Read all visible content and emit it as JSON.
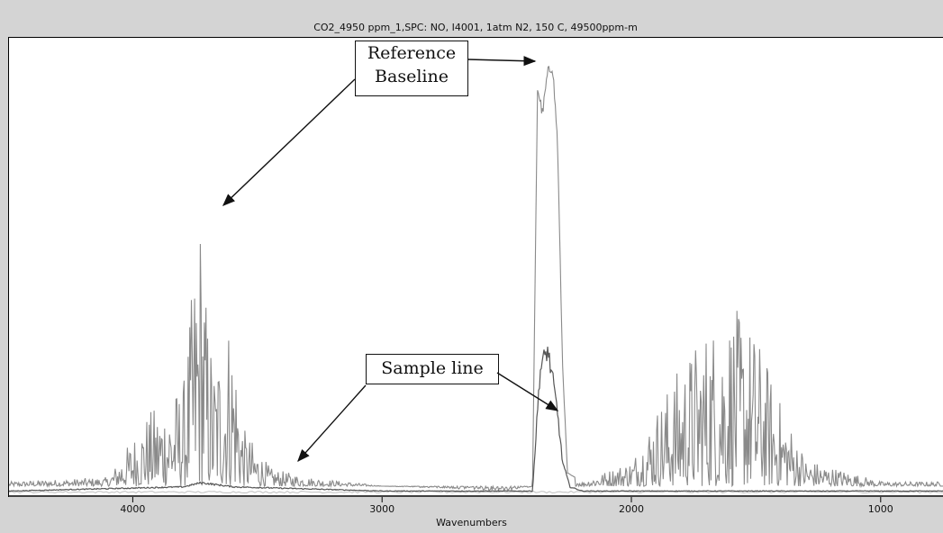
{
  "window": {
    "title": "CO2_4950 ppm_1,SPC: NO, I4001, 1atm N2, 150 C, 49500ppm-m"
  },
  "annotations": {
    "reference_baseline_line1": "Reference",
    "reference_baseline_line2": "Baseline",
    "sample_line": "Sample line"
  },
  "colors": {
    "background": "#ffffff",
    "frame": "#d4d4d4",
    "reference_trace": "#8a8a8a",
    "sample_trace": "#555555",
    "baseline_trace": "#bdbdbd"
  },
  "chart_data": {
    "type": "line",
    "title": "CO2_4950 ppm_1,SPC: NO, I4001, 1atm N2, 150 C, 49500ppm-m",
    "xlabel": "Wavenumbers",
    "ylabel": "",
    "x_reversed": true,
    "xlim": [
      4500,
      750
    ],
    "ylim": [
      0,
      1.0
    ],
    "grid": false,
    "x_ticks": [
      4000,
      3000,
      2000,
      1000
    ],
    "x_tick_labels": [
      "4000",
      "3000",
      "2000",
      "1000"
    ],
    "series": [
      {
        "role": "reference-envelope",
        "x": [
          4500,
          4100,
          3950,
          3800,
          3750,
          3730,
          3710,
          3680,
          3620,
          3600,
          3560,
          3450,
          3300,
          3000,
          2500,
          2400,
          2380,
          2360,
          2340,
          2320,
          2300,
          2280,
          2260,
          2200,
          2000,
          1900,
          1800,
          1700,
          1600,
          1550,
          1500,
          1400,
          1300,
          1000,
          750
        ],
        "values": [
          0.03,
          0.04,
          0.18,
          0.25,
          0.55,
          0.66,
          0.45,
          0.3,
          0.4,
          0.38,
          0.15,
          0.06,
          0.04,
          0.02,
          0.01,
          0.02,
          0.92,
          0.86,
          0.95,
          0.97,
          0.8,
          0.3,
          0.05,
          0.03,
          0.08,
          0.2,
          0.3,
          0.38,
          0.42,
          0.4,
          0.36,
          0.2,
          0.08,
          0.03,
          0.03
        ]
      },
      {
        "role": "sample-line",
        "x": [
          4500,
          3800,
          3730,
          3600,
          3000,
          2400,
          2370,
          2340,
          2320,
          2300,
          2280,
          2250,
          2200,
          1000,
          750
        ],
        "values": [
          0.01,
          0.02,
          0.03,
          0.02,
          0.01,
          0.01,
          0.3,
          0.35,
          0.28,
          0.2,
          0.08,
          0.02,
          0.01,
          0.01,
          0.01
        ]
      }
    ]
  }
}
